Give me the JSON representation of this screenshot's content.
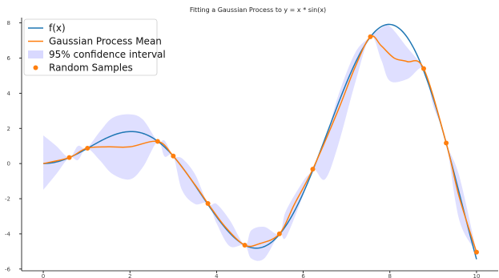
{
  "chart_data": {
    "type": "line",
    "title": "Fitting a Gaussian Process to y = x * sin(x)",
    "xlim": [
      -0.5,
      10.5
    ],
    "ylim": [
      -6.1,
      8.3
    ],
    "xticks": [
      0,
      2,
      4,
      6,
      8,
      10
    ],
    "yticks": [
      -6,
      -4,
      -2,
      0,
      2,
      4,
      6,
      8
    ],
    "grid": false,
    "legend_position": "top-left",
    "series": [
      {
        "name": "f(x)",
        "kind": "line",
        "color": "#1f77b4",
        "function": "x*sin(x)",
        "x_range": [
          0,
          10
        ]
      },
      {
        "name": "Gaussian Process Mean",
        "kind": "line",
        "color": "#ff7f0e",
        "x": [
          0,
          0.6,
          1.0,
          1.5,
          2.0,
          2.64,
          3.0,
          3.5,
          3.8,
          4.2,
          4.65,
          5.0,
          5.45,
          5.8,
          6.22,
          6.8,
          7.2,
          7.55,
          7.8,
          8.1,
          8.4,
          8.78,
          9.3,
          9.6,
          10.0
        ],
        "y": [
          0.0,
          0.34,
          0.87,
          0.95,
          0.95,
          1.26,
          0.43,
          -1.2,
          -2.27,
          -3.6,
          -4.64,
          -4.55,
          -4.0,
          -2.3,
          -0.32,
          3.0,
          5.5,
          7.21,
          6.7,
          6.0,
          5.8,
          5.4,
          1.17,
          -1.9,
          -5.04
        ]
      },
      {
        "name": "95% confidence interval",
        "kind": "band",
        "color": "#d9d9ff",
        "x": [
          0,
          0.3,
          0.6,
          0.8,
          1.0,
          1.3,
          1.6,
          2.0,
          2.3,
          2.64,
          2.8,
          3.0,
          3.2,
          3.5,
          3.8,
          4.0,
          4.3,
          4.65,
          4.8,
          5.1,
          5.45,
          5.6,
          6.0,
          6.22,
          6.5,
          6.8,
          7.2,
          7.55,
          7.8,
          8.0,
          8.4,
          8.78,
          9.0,
          9.3,
          9.6,
          10.0
        ],
        "upper": [
          1.6,
          1.0,
          0.34,
          1.0,
          0.87,
          1.8,
          2.6,
          2.8,
          2.5,
          1.26,
          1.3,
          0.43,
          0.3,
          -0.6,
          -2.27,
          -2.3,
          -3.2,
          -4.64,
          -3.8,
          -3.6,
          -4.0,
          -2.7,
          -1.0,
          -0.32,
          1.2,
          3.8,
          6.3,
          7.21,
          7.7,
          7.8,
          6.6,
          5.4,
          3.9,
          1.17,
          -0.7,
          -5.04
        ],
        "lower": [
          -1.5,
          -0.6,
          0.34,
          0.2,
          0.87,
          0.2,
          -0.6,
          -0.9,
          -0.2,
          1.26,
          0.4,
          0.43,
          -1.5,
          -2.3,
          -2.27,
          -3.4,
          -4.7,
          -4.64,
          -5.4,
          -5.4,
          -4.0,
          -4.2,
          -1.8,
          -0.32,
          -0.9,
          1.0,
          4.6,
          7.21,
          5.9,
          4.7,
          4.8,
          5.4,
          3.3,
          1.17,
          -3.2,
          -5.04
        ]
      },
      {
        "name": "Random Samples",
        "kind": "scatter",
        "color": "#ff7f0e",
        "x": [
          0.6,
          1.02,
          2.64,
          3.0,
          3.8,
          4.65,
          5.45,
          6.22,
          7.55,
          8.78,
          9.3,
          10.0
        ],
        "y": [
          0.34,
          0.87,
          1.26,
          0.43,
          -2.27,
          -4.64,
          -4.0,
          -0.32,
          7.21,
          5.4,
          1.17,
          -5.04
        ]
      }
    ],
    "legend": [
      {
        "label": "f(x)",
        "symbol": "line",
        "color": "#1f77b4"
      },
      {
        "label": "Gaussian Process Mean",
        "symbol": "line",
        "color": "#ff7f0e"
      },
      {
        "label": "95% confidence interval",
        "symbol": "patch",
        "color": "#d9d9ff"
      },
      {
        "label": "Random Samples",
        "symbol": "dot",
        "color": "#ff7f0e"
      }
    ]
  }
}
